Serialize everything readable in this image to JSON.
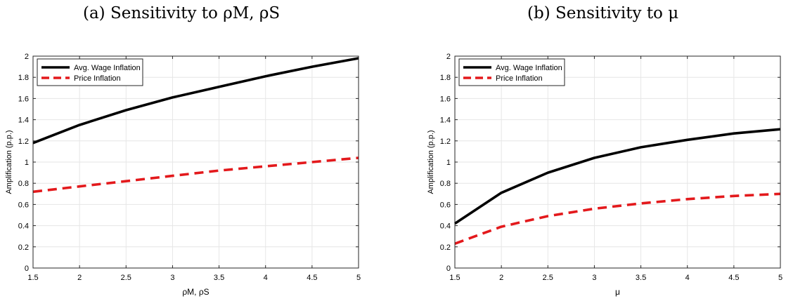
{
  "panel_titles": {
    "a": "(a) Sensitivity to ρM, ρS",
    "b": "(b) Sensitivity to μ"
  },
  "colors": {
    "wage": "#000000",
    "price": "#e3191c",
    "frame": "#262626",
    "grid": "#e6e6e6"
  },
  "chart_data": [
    {
      "type": "line",
      "title": "(a) Sensitivity to ρM, ρS",
      "xlabel": "ρM, ρS",
      "ylabel": "Amplification (p.p.)",
      "xlim": [
        1.5,
        5
      ],
      "ylim": [
        0,
        2
      ],
      "xticks": [
        "1.5",
        "2",
        "2.5",
        "3",
        "3.5",
        "4",
        "4.5",
        "5"
      ],
      "yticks": [
        "0",
        "0.2",
        "0.4",
        "0.6",
        "0.8",
        "1",
        "1.2",
        "1.4",
        "1.6",
        "1.8",
        "2"
      ],
      "grid": true,
      "legend": "top-left",
      "x": [
        1.5,
        2,
        2.5,
        3,
        3.5,
        4,
        4.5,
        5
      ],
      "series": [
        {
          "name": "Avg. Wage Inflation",
          "style": "solid",
          "values": [
            1.18,
            1.35,
            1.49,
            1.61,
            1.71,
            1.81,
            1.9,
            1.98
          ]
        },
        {
          "name": "Price Inflation",
          "style": "dashed",
          "values": [
            0.72,
            0.77,
            0.82,
            0.87,
            0.92,
            0.96,
            1.0,
            1.04
          ]
        }
      ]
    },
    {
      "type": "line",
      "title": "(b) Sensitivity to μ",
      "xlabel": "μ",
      "ylabel": "Amplification (p.p.)",
      "xlim": [
        1.5,
        5
      ],
      "ylim": [
        0,
        2
      ],
      "xticks": [
        "1.5",
        "2",
        "2.5",
        "3",
        "3.5",
        "4",
        "4.5",
        "5"
      ],
      "yticks": [
        "0",
        "0.2",
        "0.4",
        "0.6",
        "0.8",
        "1",
        "1.2",
        "1.4",
        "1.6",
        "1.8",
        "2"
      ],
      "grid": true,
      "legend": "top-left",
      "x": [
        1.5,
        2,
        2.5,
        3,
        3.5,
        4,
        4.5,
        5
      ],
      "series": [
        {
          "name": "Avg. Wage Inflation",
          "style": "solid",
          "values": [
            0.42,
            0.71,
            0.9,
            1.04,
            1.14,
            1.21,
            1.27,
            1.31
          ]
        },
        {
          "name": "Price Inflation",
          "style": "dashed",
          "values": [
            0.23,
            0.39,
            0.49,
            0.56,
            0.61,
            0.65,
            0.68,
            0.7
          ]
        }
      ]
    }
  ]
}
